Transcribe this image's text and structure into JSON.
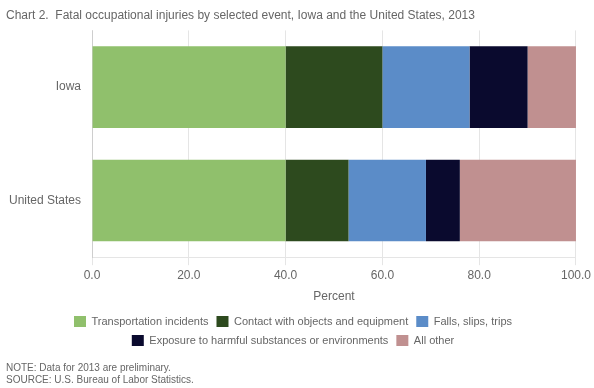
{
  "chart_data": {
    "type": "bar",
    "orientation": "horizontal",
    "stacked": true,
    "title": "Chart 2.  Fatal occupational injuries by selected event, Iowa and the United States, 2013",
    "categories": [
      "Iowa",
      "United States"
    ],
    "series": [
      {
        "name": "Transportation incidents",
        "color": "#90c06c",
        "values": [
          40.0,
          40.0
        ]
      },
      {
        "name": "Contact with objects and equipment",
        "color": "#2d4a1e",
        "values": [
          20.0,
          13.0
        ]
      },
      {
        "name": "Falls, slips, trips",
        "color": "#5b8cc8",
        "values": [
          18.0,
          16.0
        ]
      },
      {
        "name": "Exposure to harmful substances or environments",
        "color": "#0a0a2e",
        "values": [
          12.0,
          7.0
        ]
      },
      {
        "name": "All other",
        "color": "#c09090",
        "values": [
          10.0,
          24.0
        ]
      }
    ],
    "xlabel": "Percent",
    "xlim": [
      0,
      100
    ],
    "xticks": [
      {
        "value": 0,
        "label": "0.0"
      },
      {
        "value": 20,
        "label": "20.0"
      },
      {
        "value": 40,
        "label": "40.0"
      },
      {
        "value": 60,
        "label": "60.0"
      },
      {
        "value": 80,
        "label": "80.0"
      },
      {
        "value": 100,
        "label": "100.0"
      }
    ],
    "grid": "x",
    "legend": "bottom",
    "annotations": [
      "NOTE: Data for 2013 are preliminary.",
      "SOURCE: U.S. Bureau of Labor Statistics."
    ]
  }
}
